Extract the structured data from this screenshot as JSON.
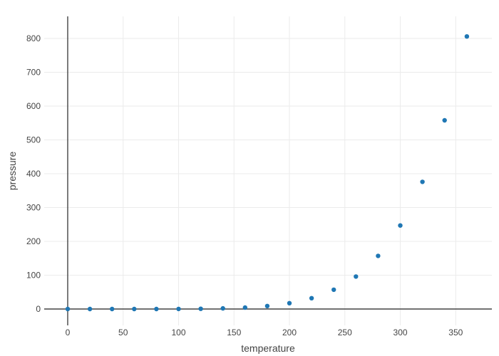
{
  "chart_data": {
    "type": "scatter",
    "title": "",
    "xlabel": "temperature",
    "ylabel": "pressure",
    "x": [
      0,
      20,
      40,
      60,
      80,
      100,
      120,
      140,
      160,
      180,
      200,
      220,
      240,
      260,
      280,
      300,
      320,
      340,
      360
    ],
    "y": [
      0.0002,
      0.0012,
      0.006,
      0.03,
      0.09,
      0.27,
      0.75,
      1.85,
      4.2,
      8.8,
      17.3,
      32.1,
      57,
      96,
      157,
      247,
      376,
      558,
      806
    ],
    "xticks": [
      0,
      50,
      100,
      150,
      200,
      250,
      300,
      350
    ],
    "yticks": [
      0,
      100,
      200,
      300,
      400,
      500,
      600,
      700,
      800
    ],
    "xlim": [
      -21.2,
      382.6
    ],
    "ylim": [
      -48.4,
      865.3
    ],
    "grid": true,
    "legend": false,
    "marker_size": 6.4,
    "colors": {
      "marker": "#1f77b4",
      "grid": "#ebebeb",
      "zeroline": "#444444",
      "text": "#444444",
      "background": "#ffffff"
    }
  }
}
